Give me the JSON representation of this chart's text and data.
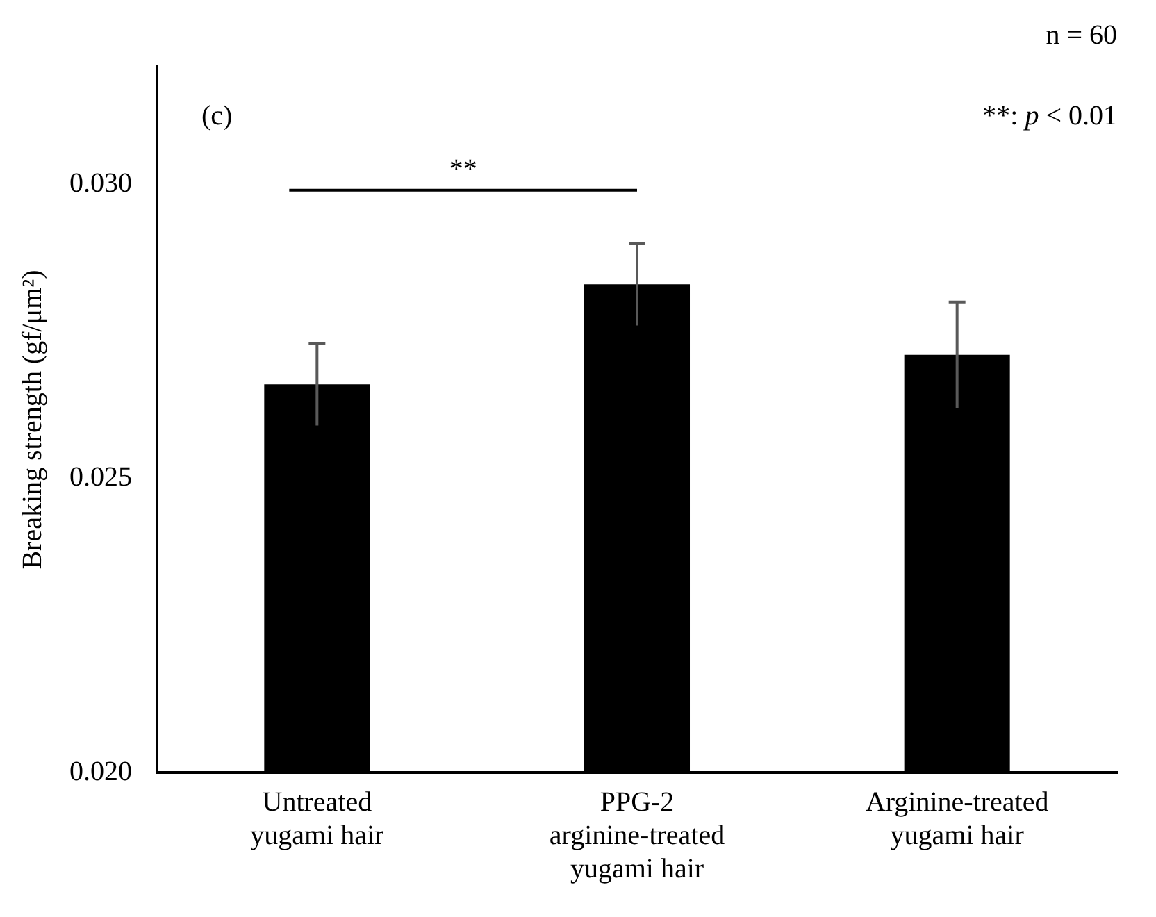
{
  "chart_data": {
    "type": "bar",
    "ylabel": "Breaking strength (gf/μm²)",
    "categories": [
      "Untreated yugami hair",
      "PPG-2 arginine-treated yugami hair",
      "Arginine-treated yugami hair"
    ],
    "values": [
      0.0266,
      0.0283,
      0.0271
    ],
    "errors": [
      0.0007,
      0.0007,
      0.0009
    ],
    "color": "#000000",
    "ylim": [
      0.02,
      0.032
    ],
    "yticks": [
      {
        "value": 0.02,
        "label": "0.020"
      },
      {
        "value": 0.025,
        "label": "0.025"
      },
      {
        "value": 0.03,
        "label": "0.030"
      }
    ],
    "grid": false,
    "legend": false,
    "annotations": [
      "(c)",
      "n = 60",
      "**: p < 0.01",
      "**"
    ]
  }
}
